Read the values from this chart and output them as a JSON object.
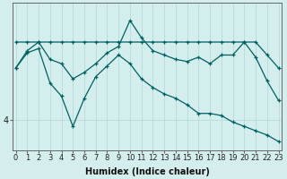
{
  "xlabel": "Humidex (Indice chaleur)",
  "bg_color": "#d4eeee",
  "line_color": "#006060",
  "grid_color": "#b0d8d8",
  "x": [
    0,
    1,
    2,
    3,
    4,
    5,
    6,
    7,
    8,
    9,
    10,
    11,
    12,
    13,
    14,
    15,
    16,
    17,
    18,
    19,
    20,
    21,
    22,
    23
  ],
  "line1_flat": [
    5.8,
    5.8,
    5.8,
    5.8,
    5.8,
    5.8,
    5.8,
    5.8,
    5.8,
    5.8,
    5.8,
    5.8,
    5.8,
    5.8,
    5.8,
    5.8,
    5.8,
    5.8,
    5.8,
    5.8,
    5.8,
    5.8,
    5.5,
    5.2
  ],
  "line2_wavy": [
    5.2,
    5.6,
    5.8,
    5.4,
    5.3,
    4.95,
    5.1,
    5.3,
    5.55,
    5.7,
    6.3,
    5.9,
    5.6,
    5.5,
    5.4,
    5.35,
    5.45,
    5.3,
    5.5,
    5.5,
    5.8,
    5.45,
    4.9,
    4.45
  ],
  "line3_dip": [
    5.2,
    5.55,
    5.65,
    4.85,
    4.55,
    3.85,
    4.5,
    5.0,
    5.25,
    5.5,
    5.3,
    4.95,
    4.75,
    4.6,
    4.5,
    4.35,
    4.15,
    4.15,
    4.1,
    3.95,
    3.85,
    3.75,
    3.65,
    3.5
  ],
  "ylim": [
    3.3,
    6.7
  ],
  "yticks": [
    4
  ],
  "xtick_labels": [
    "0",
    "1",
    "2",
    "3",
    "4",
    "5",
    "6",
    "7",
    "8",
    "9",
    "10",
    "11",
    "12",
    "13",
    "14",
    "15",
    "16",
    "17",
    "18",
    "19",
    "20",
    "21",
    "22",
    "23"
  ],
  "fontsize": 7
}
